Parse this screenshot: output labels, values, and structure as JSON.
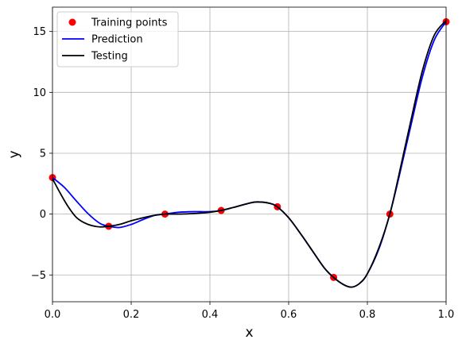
{
  "chart_data": {
    "type": "scatter",
    "xlabel": "x",
    "ylabel": "y",
    "xlim": [
      0.0,
      1.0
    ],
    "ylim": [
      -7.2,
      17.0
    ],
    "grid": true,
    "legend_position": "top-left",
    "x_ticks": [
      {
        "value": 0.0,
        "label": "0.0"
      },
      {
        "value": 0.2,
        "label": "0.2"
      },
      {
        "value": 0.4,
        "label": "0.4"
      },
      {
        "value": 0.6,
        "label": "0.6"
      },
      {
        "value": 0.8,
        "label": "0.8"
      },
      {
        "value": 1.0,
        "label": "1.0"
      }
    ],
    "y_ticks": [
      {
        "value": -5,
        "label": "−5"
      },
      {
        "value": 0,
        "label": "0"
      },
      {
        "value": 5,
        "label": "5"
      },
      {
        "value": 10,
        "label": "10"
      },
      {
        "value": 15,
        "label": "15"
      }
    ],
    "series": [
      {
        "name": "Training points",
        "kind": "scatter",
        "color": "#ff0000",
        "x": [
          0.0,
          0.1429,
          0.2857,
          0.4286,
          0.5714,
          0.7143,
          0.8571,
          1.0
        ],
        "y": [
          3.0,
          -1.0,
          0.0,
          0.3,
          0.6,
          -5.2,
          0.0,
          15.8
        ]
      },
      {
        "name": "Prediction",
        "kind": "line",
        "color": "#0000ff",
        "x": [
          0.0,
          0.03,
          0.06,
          0.09,
          0.12,
          0.143,
          0.17,
          0.2,
          0.23,
          0.26,
          0.286,
          0.32,
          0.36,
          0.4,
          0.429,
          0.46,
          0.5,
          0.52,
          0.55,
          0.571,
          0.6,
          0.63,
          0.66,
          0.69,
          0.714,
          0.74,
          0.76,
          0.78,
          0.8,
          0.83,
          0.857,
          0.88,
          0.91,
          0.94,
          0.97,
          1.0
        ],
        "y": [
          3.0,
          2.2,
          1.1,
          0.05,
          -0.75,
          -1.0,
          -1.1,
          -0.85,
          -0.45,
          -0.1,
          0.0,
          0.15,
          0.2,
          0.2,
          0.3,
          0.55,
          0.9,
          1.0,
          0.9,
          0.6,
          -0.3,
          -1.6,
          -3.0,
          -4.4,
          -5.2,
          -5.8,
          -6.0,
          -5.7,
          -4.9,
          -2.8,
          0.0,
          3.0,
          7.2,
          11.3,
          14.3,
          15.8
        ]
      },
      {
        "name": "Testing",
        "kind": "line",
        "color": "#000000",
        "x": [
          0.0,
          0.02,
          0.04,
          0.06,
          0.08,
          0.1,
          0.12,
          0.143,
          0.17,
          0.2,
          0.23,
          0.26,
          0.286,
          0.32,
          0.36,
          0.4,
          0.429,
          0.46,
          0.5,
          0.52,
          0.55,
          0.571,
          0.6,
          0.63,
          0.66,
          0.69,
          0.714,
          0.74,
          0.76,
          0.78,
          0.8,
          0.83,
          0.857,
          0.88,
          0.91,
          0.94,
          0.97,
          1.0
        ],
        "y": [
          2.9,
          1.7,
          0.6,
          -0.25,
          -0.7,
          -0.95,
          -1.05,
          -1.0,
          -0.85,
          -0.55,
          -0.3,
          -0.1,
          0.0,
          0.0,
          0.05,
          0.15,
          0.3,
          0.55,
          0.9,
          1.0,
          0.9,
          0.6,
          -0.3,
          -1.6,
          -3.0,
          -4.4,
          -5.2,
          -5.8,
          -6.0,
          -5.7,
          -4.9,
          -2.7,
          0.0,
          3.2,
          7.6,
          11.8,
          14.7,
          15.9
        ]
      }
    ]
  }
}
